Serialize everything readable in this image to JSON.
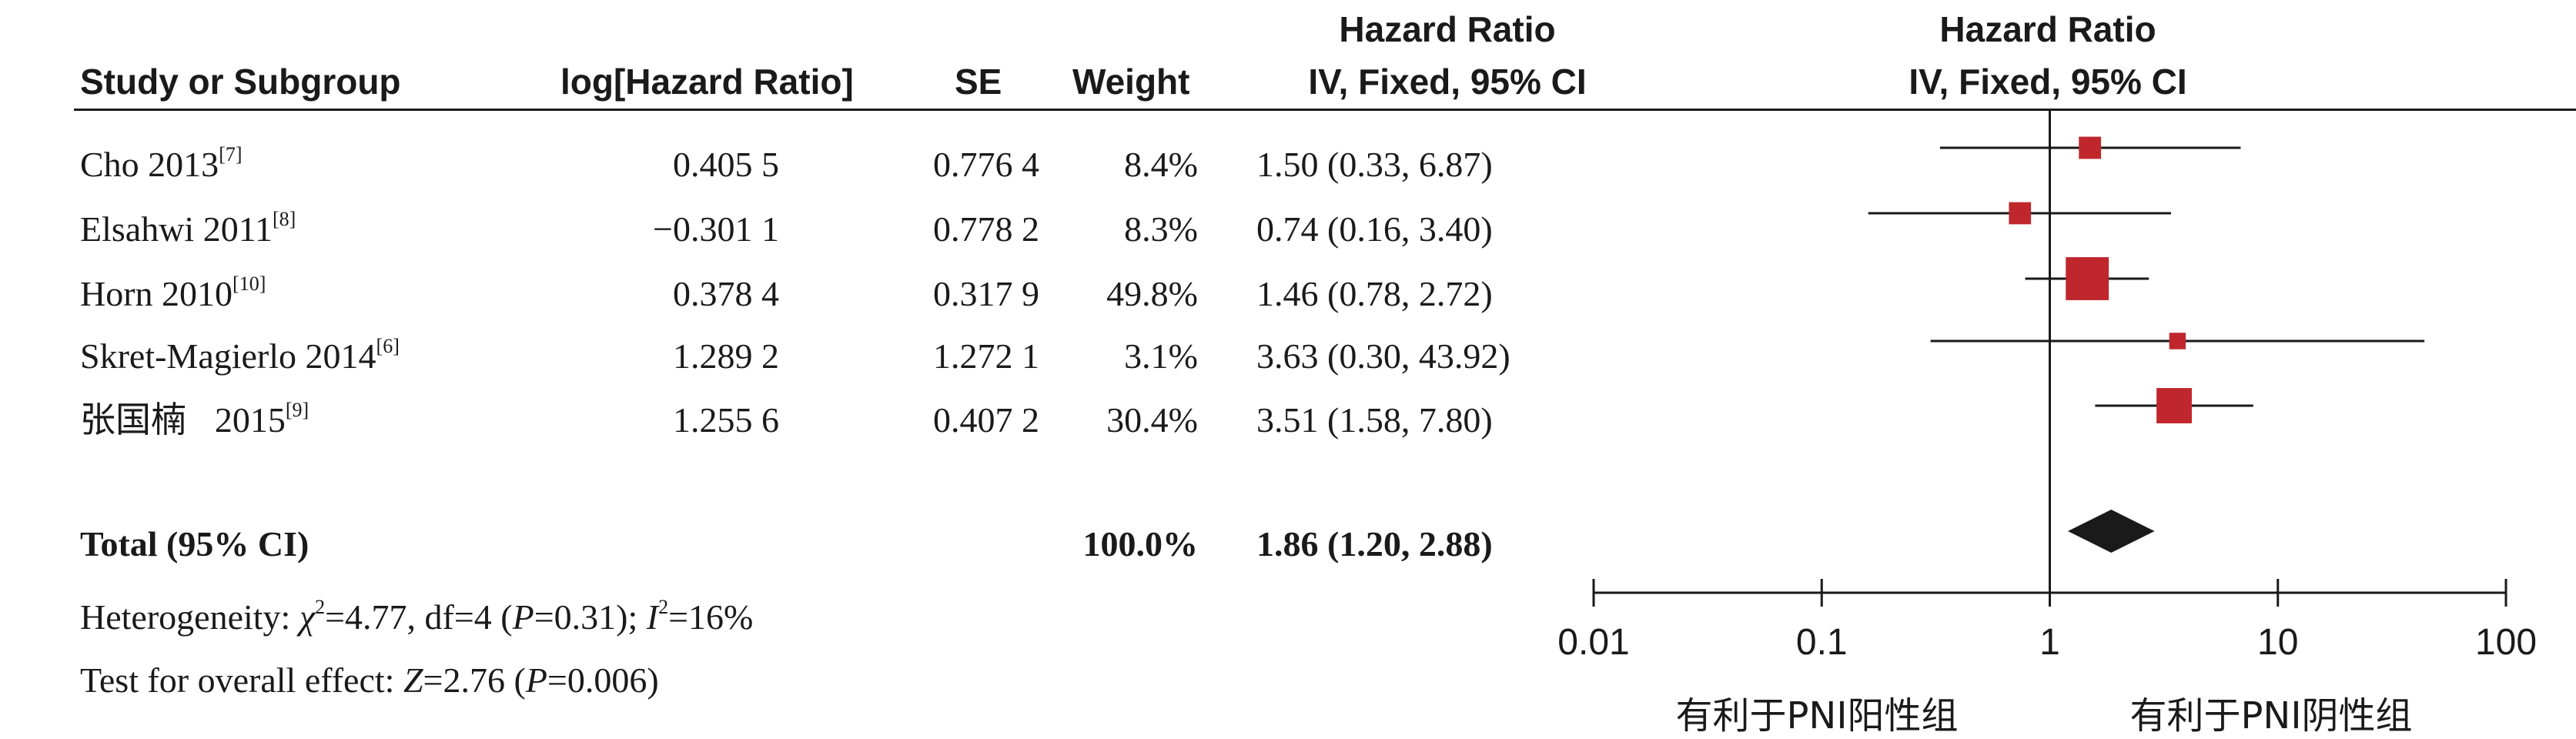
{
  "columns": {
    "study": "Study or Subgroup",
    "loghr": "log[Hazard Ratio]",
    "se": "SE",
    "weight": "Weight",
    "hr_line1": "Hazard Ratio",
    "hr_line2": "IV, Fixed, 95% CI",
    "plot_line1": "Hazard Ratio",
    "plot_line2": "IV, Fixed, 95% CI"
  },
  "studies": [
    {
      "name": "Cho 2013",
      "ref": "[7]",
      "loghr": "0.405 5",
      "se": "0.776 4",
      "weight": "8.4%",
      "ci_text": "1.50 (0.33, 6.87)"
    },
    {
      "name": "Elsahwi 2011",
      "ref": "[8]",
      "loghr": "−0.301 1",
      "se": "0.778 2",
      "weight": "8.3%",
      "ci_text": "0.74 (0.16, 3.40)"
    },
    {
      "name": "Horn 2010",
      "ref": "[10]",
      "loghr": "0.378 4",
      "se": "0.317 9",
      "weight": "49.8%",
      "ci_text": "1.46 (0.78, 2.72)"
    },
    {
      "name": "Skret-Magierlo 2014",
      "ref": "[6]",
      "loghr": "1.289 2",
      "se": "1.272 1",
      "weight": "3.1%",
      "ci_text": "3.63 (0.30, 43.92)"
    },
    {
      "name": "张国楠    2015",
      "ref": "[9]",
      "loghr": "1.255 6",
      "se": "0.407 2",
      "weight": "30.4%",
      "ci_text": "3.51 (1.58, 7.80)"
    }
  ],
  "total": {
    "label": "Total (95% CI)",
    "weight": "100.0%",
    "ci_text": "1.86 (1.20, 2.88)"
  },
  "heterogeneity": {
    "prefix": "Heterogeneity: ",
    "chi_symbol": "χ",
    "chi_value": "=4.77, df=4 (",
    "p_symbol": "P",
    "p_value": "=0.31); ",
    "i_symbol": "I",
    "i_value": "=16%"
  },
  "overall": {
    "prefix": "Test for overall effect: ",
    "z_symbol": "Z",
    "z_value": "=2.76 (",
    "p_symbol": "P",
    "p_value": "=0.006)"
  },
  "favours": {
    "left": "有利于PNI阳性组",
    "right": "有利于PNI阴性组"
  },
  "chart_data": {
    "type": "forest",
    "x_scale": "log",
    "x_ticks": [
      0.01,
      0.1,
      1,
      10,
      100
    ],
    "x_tick_labels": [
      "0.01",
      "0.1",
      "1",
      "10",
      "100"
    ],
    "reference_line": 1,
    "marker_color": "#c0272d",
    "diamond_color": "#1a1a1a",
    "studies": [
      {
        "hr": 1.5,
        "lower": 0.33,
        "upper": 6.87,
        "weight": 8.4
      },
      {
        "hr": 0.74,
        "lower": 0.16,
        "upper": 3.4,
        "weight": 8.3
      },
      {
        "hr": 1.46,
        "lower": 0.78,
        "upper": 2.72,
        "weight": 49.8
      },
      {
        "hr": 3.63,
        "lower": 0.3,
        "upper": 43.92,
        "weight": 3.1
      },
      {
        "hr": 3.51,
        "lower": 1.58,
        "upper": 7.8,
        "weight": 30.4
      }
    ],
    "pooled": {
      "hr": 1.86,
      "lower": 1.2,
      "upper": 2.88
    }
  }
}
